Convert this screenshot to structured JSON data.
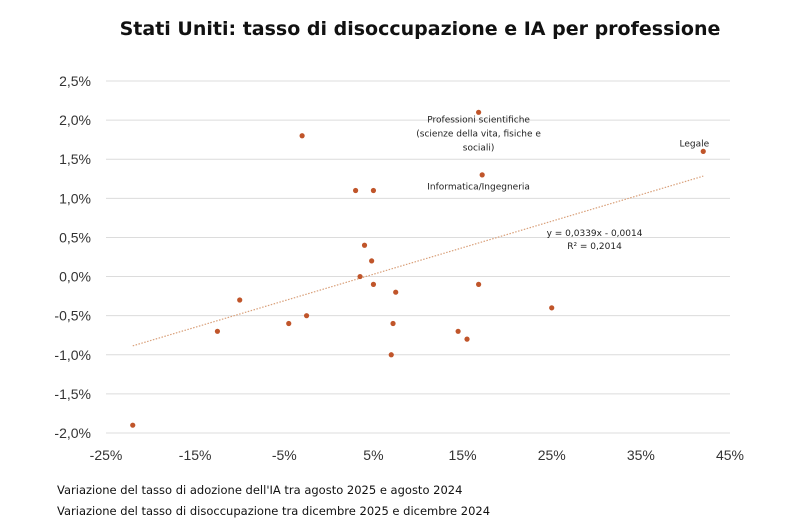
{
  "chart_data": {
    "type": "scatter",
    "title": "Stati Uniti: tasso di disoccupazione e IA per professione",
    "xlabel": "Variazione del tasso di adozione dell'IA tra agosto 2025 e agosto 2024",
    "ylabel": "Variazione del tasso di disoccupazione tra dicembre 2025 e dicembre 2024",
    "xlim": [
      -0.25,
      0.45
    ],
    "ylim": [
      -0.02,
      0.025
    ],
    "x_ticks": [
      -0.25,
      -0.15,
      -0.05,
      0.05,
      0.15,
      0.25,
      0.35,
      0.45
    ],
    "x_tick_labels": [
      "-25%",
      "-15%",
      "-5%",
      "5%",
      "15%",
      "25%",
      "35%",
      "45%"
    ],
    "y_ticks": [
      0.025,
      0.02,
      0.015,
      0.01,
      0.005,
      0.0,
      -0.005,
      -0.01,
      -0.015,
      -0.02
    ],
    "y_tick_labels": [
      "2,5%",
      "2,0%",
      "1,5%",
      "1,0%",
      "0,5%",
      "0,0%",
      "-0,5%",
      "-1,0%",
      "-1,5%",
      "-2,0%"
    ],
    "grid": true,
    "point_color": "#C0552A",
    "trend_color": "#D9A07A",
    "series": [
      {
        "points": [
          {
            "x": -0.22,
            "y": -0.019
          },
          {
            "x": -0.125,
            "y": -0.007
          },
          {
            "x": -0.1,
            "y": -0.003
          },
          {
            "x": -0.045,
            "y": -0.006
          },
          {
            "x": -0.025,
            "y": -0.005
          },
          {
            "x": -0.03,
            "y": 0.018
          },
          {
            "x": 0.03,
            "y": 0.011
          },
          {
            "x": 0.05,
            "y": 0.011
          },
          {
            "x": 0.04,
            "y": 0.004
          },
          {
            "x": 0.048,
            "y": 0.002
          },
          {
            "x": 0.035,
            "y": 0.0
          },
          {
            "x": 0.05,
            "y": -0.001
          },
          {
            "x": 0.075,
            "y": -0.002
          },
          {
            "x": 0.072,
            "y": -0.006
          },
          {
            "x": 0.07,
            "y": -0.01
          },
          {
            "x": 0.145,
            "y": -0.007
          },
          {
            "x": 0.155,
            "y": -0.008
          },
          {
            "x": 0.168,
            "y": -0.001
          },
          {
            "x": 0.25,
            "y": -0.004
          },
          {
            "x": 0.168,
            "y": 0.021
          },
          {
            "x": 0.172,
            "y": 0.013
          },
          {
            "x": 0.42,
            "y": 0.016
          }
        ]
      }
    ],
    "trendline": {
      "slope": 0.0339,
      "intercept": -0.0014,
      "x_range": [
        -0.22,
        0.42
      ],
      "equation_lines": [
        "y = 0,0339x - 0,0014",
        "R² = 0,2014"
      ],
      "label_anchor": {
        "x": 0.298,
        "y": 0.0052
      }
    },
    "annotations": [
      {
        "lines": [
          "Professioni scientifiche",
          "(scienze della vita, fisiche e",
          "sociali)"
        ],
        "anchor": {
          "x": 0.168,
          "y": 0.0197
        }
      },
      {
        "lines": [
          "Informatica/Ingegneria"
        ],
        "anchor": {
          "x": 0.168,
          "y": 0.0111
        }
      },
      {
        "lines": [
          "Legale"
        ],
        "anchor": {
          "x": 0.41,
          "y": 0.0166
        }
      }
    ]
  }
}
